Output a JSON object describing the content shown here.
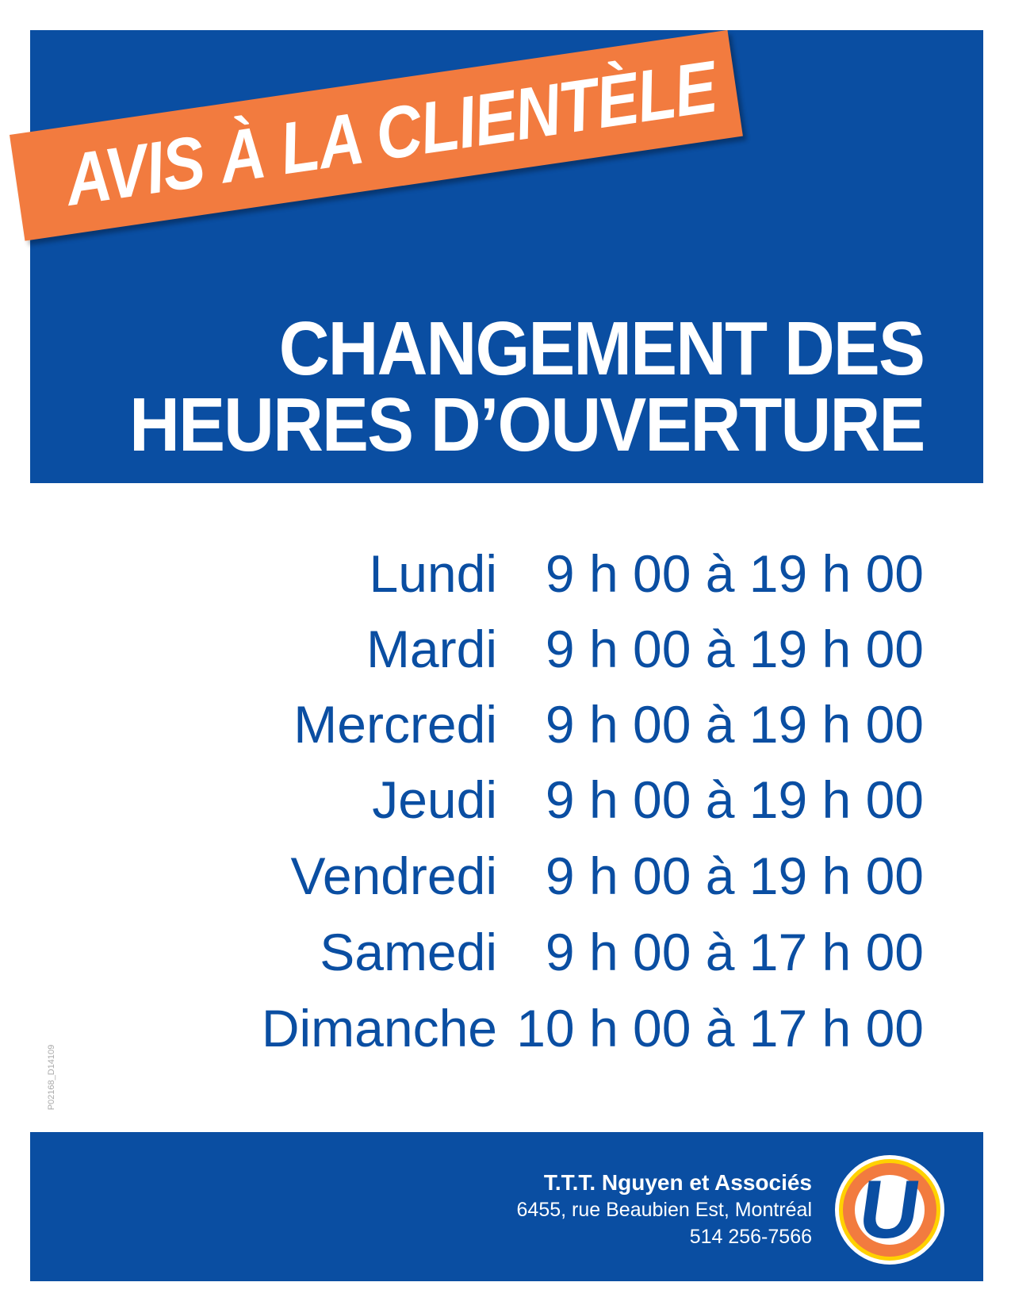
{
  "banner": {
    "text": "AVIS À LA CLIENTÈLE"
  },
  "headline": {
    "line1": "CHANGEMENT DES",
    "line2": "HEURES D’OUVERTURE"
  },
  "hours": [
    {
      "day": "Lundi",
      "time": "9 h 00 à 19 h 00"
    },
    {
      "day": "Mardi",
      "time": "9 h 00 à 19 h 00"
    },
    {
      "day": "Mercredi",
      "time": "9 h 00 à 19 h 00"
    },
    {
      "day": "Jeudi",
      "time": "9 h 00 à 19 h 00"
    },
    {
      "day": "Vendredi",
      "time": "9 h 00 à 19 h 00"
    },
    {
      "day": "Samedi",
      "time": "9 h 00 à 17 h 00"
    },
    {
      "day": "Dimanche",
      "time": "10 h 00 à 17 h 00"
    }
  ],
  "code": "P02168_D14109",
  "footer": {
    "name": "T.T.T. Nguyen et Associés",
    "address": "6455, rue Beaubien Est, Montréal",
    "phone": "514 256-7566",
    "logo_letter": "U"
  },
  "colors": {
    "blue": "#0a4ea2",
    "orange": "#f27b3f",
    "yellow": "#ffd100"
  }
}
